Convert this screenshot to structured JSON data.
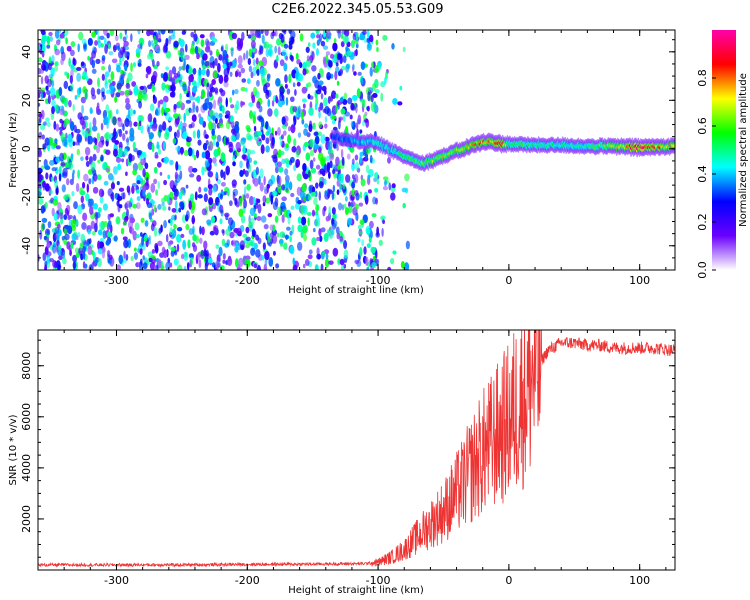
{
  "title": "C2E6.2022.345.05.53.G09",
  "chart_data": [
    {
      "type": "heatmap",
      "xlabel": "Height of straight line (km)",
      "ylabel": "Frequency (Hz)",
      "xlim": [
        -360,
        127
      ],
      "ylim": [
        -50,
        49
      ],
      "xticks": [
        -300,
        -200,
        -100,
        0,
        100
      ],
      "yticks": [
        -40,
        -20,
        0,
        20,
        40
      ],
      "xtick_labels": [
        "-300",
        "-200",
        "-100",
        "0",
        "100"
      ],
      "ytick_labels": [
        "-40",
        "-20",
        "0",
        "20",
        "40"
      ],
      "grid": false,
      "colorbar": {
        "label": "Normalized spectral amplitude",
        "range": [
          0,
          1
        ],
        "ticks": [
          0.0,
          0.2,
          0.4,
          0.6,
          0.8
        ],
        "tick_labels": [
          "0.0",
          "0.2",
          "0.4",
          "0.6",
          "0.8"
        ],
        "colors": [
          "#ffffff",
          "#6a00ff",
          "#0000ff",
          "#00ffff",
          "#00ff00",
          "#ffff00",
          "#ff0000",
          "#ff00aa"
        ]
      },
      "noise_region": {
        "x": [
          -360,
          -100
        ],
        "amplitude": 0.5
      },
      "signal_ridge": {
        "x": [
          -135,
          -125,
          -115,
          -105,
          -95,
          -85,
          -75,
          -65,
          -55,
          -45,
          -35,
          -25,
          -15,
          -5,
          0,
          20,
          40,
          60,
          80,
          100,
          127
        ],
        "frequency": [
          5,
          4,
          3,
          3,
          1,
          -2,
          -4,
          -6,
          -4,
          -2,
          0,
          2,
          3,
          2,
          2,
          1.5,
          1.5,
          1,
          1,
          0.5,
          1
        ],
        "amplitude": [
          0.3,
          0.35,
          0.4,
          0.45,
          0.45,
          0.5,
          0.55,
          0.6,
          0.65,
          0.65,
          0.7,
          0.75,
          0.8,
          0.8,
          0.55,
          0.5,
          0.5,
          0.5,
          0.65,
          0.9,
          0.7
        ]
      }
    },
    {
      "type": "line",
      "xlabel": "Height of straight line (km)",
      "ylabel": "SNR (10 * v/v)",
      "xlim": [
        -360,
        127
      ],
      "ylim": [
        0,
        9400
      ],
      "xticks": [
        -300,
        -200,
        -100,
        0,
        100
      ],
      "yticks": [
        2000,
        4000,
        6000,
        8000
      ],
      "xtick_labels": [
        "-300",
        "-200",
        "-100",
        "0",
        "100"
      ],
      "ytick_labels": [
        "2000",
        "4000",
        "6000",
        "8000"
      ],
      "grid": false,
      "color": "#ee3333",
      "series": [
        {
          "x": [
            -360,
            -300,
            -250,
            -200,
            -150,
            -110,
            -100,
            -90,
            -80,
            -70,
            -60,
            -50,
            -40,
            -30,
            -20,
            -10,
            0,
            10,
            20,
            30,
            40,
            50,
            60,
            70,
            80,
            90,
            100,
            110,
            127
          ],
          "values": [
            200,
            200,
            200,
            220,
            230,
            250,
            300,
            500,
            800,
            1300,
            1800,
            2300,
            3000,
            3800,
            4600,
            5200,
            5800,
            6800,
            7800,
            8600,
            8900,
            8900,
            8800,
            8800,
            8700,
            8700,
            8700,
            8700,
            8600
          ]
        }
      ]
    }
  ]
}
